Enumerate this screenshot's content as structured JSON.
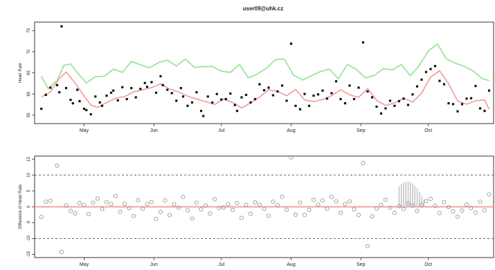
{
  "page": {
    "title": "user09@uhk.cz"
  },
  "chart_data": [
    {
      "type": "scatter",
      "title": "user09@uhk.cz",
      "xlabel": "",
      "ylabel": "Heart Rate",
      "xlim": [
        "2013-04-09",
        "2013-10-30"
      ],
      "ylim": [
        53,
        77
      ],
      "yticks": [
        55,
        60,
        65,
        70,
        75
      ],
      "month_ticks": [
        {
          "label": "May",
          "date": "2013-05-01"
        },
        {
          "label": "Jun",
          "date": "2013-06-01"
        },
        {
          "label": "Jul",
          "date": "2013-07-01"
        },
        {
          "label": "Aug",
          "date": "2013-08-01"
        },
        {
          "label": "Sep",
          "date": "2013-09-01"
        },
        {
          "label": "Oct",
          "date": "2013-10-01"
        }
      ],
      "colors": {
        "points": "#111111",
        "upper": "#9be59b",
        "smooth": "#f4a3a3"
      },
      "series": [
        {
          "kind": "points",
          "x": [
            "2013-04-12",
            "2013-04-14",
            "2013-04-16",
            "2013-04-19",
            "2013-04-20",
            "2013-04-21",
            "2013-04-23",
            "2013-04-25",
            "2013-04-26",
            "2013-04-28",
            "2013-04-29",
            "2013-05-01",
            "2013-05-02",
            "2013-05-04",
            "2013-05-06",
            "2013-05-08",
            "2013-05-09",
            "2013-05-11",
            "2013-05-13",
            "2013-05-14",
            "2013-05-16",
            "2013-05-18",
            "2013-05-20",
            "2013-05-22",
            "2013-05-24",
            "2013-05-26",
            "2013-05-28",
            "2013-05-29",
            "2013-05-31",
            "2013-06-02",
            "2013-06-04",
            "2013-06-05",
            "2013-06-07",
            "2013-06-09",
            "2013-06-11",
            "2013-06-13",
            "2013-06-14",
            "2013-06-16",
            "2013-06-18",
            "2013-06-20",
            "2013-06-22",
            "2013-06-23",
            "2013-06-25",
            "2013-06-27",
            "2013-06-29",
            "2013-07-01",
            "2013-07-03",
            "2013-07-05",
            "2013-07-07",
            "2013-07-08",
            "2013-07-10",
            "2013-07-12",
            "2013-07-14",
            "2013-07-16",
            "2013-07-18",
            "2013-07-20",
            "2013-07-22",
            "2013-07-24",
            "2013-07-26",
            "2013-07-28",
            "2013-07-30",
            "2013-08-01",
            "2013-08-03",
            "2013-08-05",
            "2013-08-07",
            "2013-08-09",
            "2013-08-11",
            "2013-08-13",
            "2013-08-15",
            "2013-08-17",
            "2013-08-19",
            "2013-08-21",
            "2013-08-23",
            "2013-08-25",
            "2013-08-27",
            "2013-08-29",
            "2013-08-31",
            "2013-09-02",
            "2013-09-04",
            "2013-09-06",
            "2013-09-08",
            "2013-09-10",
            "2013-09-12",
            "2013-09-14",
            "2013-09-16",
            "2013-09-18",
            "2013-09-20",
            "2013-09-22",
            "2013-09-24",
            "2013-09-26",
            "2013-09-28",
            "2013-09-30",
            "2013-10-02",
            "2013-10-04",
            "2013-10-06",
            "2013-10-08",
            "2013-10-10",
            "2013-10-12",
            "2013-10-14",
            "2013-10-16",
            "2013-10-18",
            "2013-10-20",
            "2013-10-22",
            "2013-10-24",
            "2013-10-26",
            "2013-10-28"
          ],
          "y": [
            56.5,
            59.8,
            61.5,
            62.1,
            60.4,
            76.0,
            61.4,
            58.6,
            57.8,
            61.0,
            58.3,
            56.5,
            56.2,
            55.2,
            59.4,
            58.0,
            57.2,
            59.6,
            60.3,
            60.8,
            58.5,
            61.6,
            58.8,
            61.4,
            59.2,
            61.2,
            62.6,
            61.7,
            62.8,
            60.3,
            64.2,
            62.1,
            61.0,
            60.2,
            58.4,
            61.4,
            59.4,
            57.2,
            58.0,
            60.4,
            56.0,
            54.8,
            59.4,
            58.0,
            60.0,
            58.7,
            58.8,
            60.1,
            57.4,
            56.0,
            59.2,
            59.8,
            58.0,
            58.8,
            62.3,
            60.9,
            61.5,
            59.7,
            60.6,
            62.0,
            58.4,
            71.9,
            57.2,
            56.4,
            60.0,
            57.2,
            59.6,
            59.9,
            60.8,
            58.9,
            60.2,
            63.0,
            58.8,
            57.8,
            62.0,
            58.8,
            61.5,
            72.2,
            60.6,
            59.2,
            57.0,
            55.4,
            56.6,
            58.4,
            57.2,
            58.3,
            58.9,
            57.4,
            59.9,
            61.8,
            63.4,
            65.2,
            65.9,
            66.6,
            63.1,
            62.3,
            57.8,
            57.6,
            55.9,
            57.6,
            58.9,
            59.0,
            61.9,
            56.6,
            56.0,
            60.8
          ]
        },
        {
          "kind": "smooth",
          "x": [
            "2013-04-12",
            "2013-04-16",
            "2013-04-20",
            "2013-04-23",
            "2013-04-27",
            "2013-05-01",
            "2013-05-04",
            "2013-05-07",
            "2013-05-11",
            "2013-05-15",
            "2013-05-19",
            "2013-05-23",
            "2013-05-27",
            "2013-05-31",
            "2013-06-04",
            "2013-06-08",
            "2013-06-12",
            "2013-06-16",
            "2013-06-20",
            "2013-06-24",
            "2013-06-28",
            "2013-07-02",
            "2013-07-06",
            "2013-07-10",
            "2013-07-14",
            "2013-07-18",
            "2013-07-22",
            "2013-07-26",
            "2013-07-30",
            "2013-08-03",
            "2013-08-07",
            "2013-08-11",
            "2013-08-15",
            "2013-08-19",
            "2013-08-23",
            "2013-08-27",
            "2013-08-31",
            "2013-09-04",
            "2013-09-08",
            "2013-09-12",
            "2013-09-16",
            "2013-09-20",
            "2013-09-24",
            "2013-09-28",
            "2013-10-02",
            "2013-10-06",
            "2013-10-10",
            "2013-10-14",
            "2013-10-18",
            "2013-10-22",
            "2013-10-26",
            "2013-10-28"
          ],
          "y": [
            59.3,
            60.5,
            63.7,
            65.2,
            62.6,
            59.5,
            57.4,
            56.8,
            58.0,
            59.0,
            59.4,
            60.5,
            61.0,
            61.5,
            62.4,
            61.2,
            60.5,
            59.5,
            58.8,
            58.2,
            57.5,
            58.8,
            58.0,
            56.7,
            57.9,
            59.3,
            61.0,
            60.6,
            59.6,
            61.1,
            58.6,
            58.2,
            58.7,
            59.6,
            61.0,
            59.8,
            59.2,
            61.3,
            58.5,
            57.3,
            57.9,
            59.0,
            58.1,
            60.2,
            64.0,
            65.5,
            62.4,
            58.3,
            57.6,
            58.4,
            58.6,
            56.4
          ]
        },
        {
          "kind": "upper",
          "x": [
            "2013-04-12",
            "2013-04-15",
            "2013-04-19",
            "2013-04-22",
            "2013-04-25",
            "2013-04-28",
            "2013-05-02",
            "2013-05-06",
            "2013-05-10",
            "2013-05-14",
            "2013-05-18",
            "2013-05-22",
            "2013-05-26",
            "2013-05-30",
            "2013-06-03",
            "2013-06-07",
            "2013-06-11",
            "2013-06-15",
            "2013-06-19",
            "2013-06-23",
            "2013-06-27",
            "2013-07-01",
            "2013-07-05",
            "2013-07-09",
            "2013-07-13",
            "2013-07-17",
            "2013-07-21",
            "2013-07-25",
            "2013-07-29",
            "2013-08-02",
            "2013-08-06",
            "2013-08-10",
            "2013-08-14",
            "2013-08-18",
            "2013-08-22",
            "2013-08-26",
            "2013-08-30",
            "2013-09-03",
            "2013-09-07",
            "2013-09-11",
            "2013-09-15",
            "2013-09-19",
            "2013-09-23",
            "2013-09-27",
            "2013-10-01",
            "2013-10-05",
            "2013-10-09",
            "2013-10-13",
            "2013-10-17",
            "2013-10-21",
            "2013-10-25",
            "2013-10-28"
          ],
          "y": [
            64.2,
            61.3,
            63.2,
            66.8,
            67.1,
            65.0,
            62.6,
            64.1,
            64.2,
            65.9,
            65.1,
            67.7,
            66.9,
            66.2,
            67.4,
            68.0,
            66.6,
            68.3,
            66.3,
            66.5,
            66.5,
            65.4,
            65.1,
            67.0,
            63.8,
            64.7,
            66.1,
            68.1,
            68.3,
            64.5,
            63.3,
            64.3,
            65.3,
            65.9,
            63.6,
            67.0,
            65.8,
            63.8,
            64.4,
            66.0,
            65.7,
            67.0,
            64.3,
            66.8,
            70.2,
            71.8,
            68.3,
            67.3,
            66.5,
            65.4,
            63.6,
            63.2
          ]
        }
      ]
    },
    {
      "type": "scatter",
      "title": "",
      "xlabel": "",
      "ylabel": "Difference of Heart Rate",
      "xlim": [
        "2013-04-09",
        "2013-10-30"
      ],
      "ylim": [
        -16,
        16
      ],
      "yticks": [
        -15,
        -10,
        -5,
        0,
        5,
        10,
        15
      ],
      "reference_lines": {
        "zero": 0,
        "dashed": [
          10,
          -10
        ]
      },
      "month_ticks": [
        {
          "label": "May",
          "date": "2013-05-01"
        },
        {
          "label": "Jun",
          "date": "2013-06-01"
        },
        {
          "label": "Jul",
          "date": "2013-07-01"
        },
        {
          "label": "Aug",
          "date": "2013-08-01"
        },
        {
          "label": "Sep",
          "date": "2013-09-01"
        },
        {
          "label": "Oct",
          "date": "2013-10-01"
        }
      ],
      "colors": {
        "points": "#9a9a9a",
        "zero": "#f4a3a3",
        "dashed": "#555555",
        "bars": "#bdbdbd"
      },
      "series": [
        {
          "kind": "points",
          "x": [
            "2013-04-12",
            "2013-04-14",
            "2013-04-16",
            "2013-04-19",
            "2013-04-21",
            "2013-04-23",
            "2013-04-25",
            "2013-04-27",
            "2013-04-29",
            "2013-05-01",
            "2013-05-03",
            "2013-05-05",
            "2013-05-07",
            "2013-05-09",
            "2013-05-11",
            "2013-05-13",
            "2013-05-15",
            "2013-05-17",
            "2013-05-19",
            "2013-05-21",
            "2013-05-23",
            "2013-05-25",
            "2013-05-27",
            "2013-05-29",
            "2013-05-31",
            "2013-06-02",
            "2013-06-04",
            "2013-06-06",
            "2013-06-08",
            "2013-06-10",
            "2013-06-12",
            "2013-06-14",
            "2013-06-16",
            "2013-06-18",
            "2013-06-20",
            "2013-06-22",
            "2013-06-24",
            "2013-06-26",
            "2013-06-28",
            "2013-06-30",
            "2013-07-02",
            "2013-07-04",
            "2013-07-06",
            "2013-07-08",
            "2013-07-10",
            "2013-07-12",
            "2013-07-14",
            "2013-07-16",
            "2013-07-18",
            "2013-07-20",
            "2013-07-22",
            "2013-07-24",
            "2013-07-26",
            "2013-07-28",
            "2013-07-30",
            "2013-08-01",
            "2013-08-03",
            "2013-08-05",
            "2013-08-07",
            "2013-08-09",
            "2013-08-11",
            "2013-08-13",
            "2013-08-15",
            "2013-08-17",
            "2013-08-19",
            "2013-08-21",
            "2013-08-23",
            "2013-08-25",
            "2013-08-27",
            "2013-08-29",
            "2013-08-31",
            "2013-09-02",
            "2013-09-04",
            "2013-09-06",
            "2013-09-08",
            "2013-09-10",
            "2013-09-12",
            "2013-09-14",
            "2013-09-16",
            "2013-09-18",
            "2013-09-20",
            "2013-09-22",
            "2013-09-24",
            "2013-09-26",
            "2013-09-28",
            "2013-09-30",
            "2013-10-02",
            "2013-10-04",
            "2013-10-06",
            "2013-10-08",
            "2013-10-10",
            "2013-10-12",
            "2013-10-14",
            "2013-10-16",
            "2013-10-18",
            "2013-10-20",
            "2013-10-22",
            "2013-10-24",
            "2013-10-26",
            "2013-10-28"
          ],
          "y": [
            -3.2,
            1.6,
            1.9,
            13.0,
            -14.2,
            0.4,
            -1.3,
            -2.1,
            1.2,
            0.6,
            -2.3,
            1.3,
            2.6,
            -0.7,
            1.5,
            0.9,
            3.4,
            -1.6,
            1.0,
            -0.4,
            -2.9,
            2.1,
            -0.6,
            0.9,
            1.5,
            -3.8,
            -1.6,
            2.0,
            -2.6,
            0.8,
            -0.3,
            3.1,
            -1.1,
            -3.7,
            1.3,
            -0.8,
            0.4,
            -2.1,
            2.4,
            -0.4,
            -0.2,
            0.8,
            -1.0,
            1.2,
            -3.5,
            0.6,
            -2.2,
            1.4,
            0.7,
            -0.6,
            -2.9,
            1.6,
            0.5,
            3.2,
            -0.9,
            15.6,
            -2.5,
            1.3,
            -2.6,
            -1.0,
            2.2,
            0.7,
            2.0,
            -0.6,
            3.1,
            1.7,
            -1.9,
            0.9,
            1.7,
            -0.8,
            -2.6,
            13.8,
            -12.4,
            -3.0,
            -0.5,
            0.6,
            2.2,
            -0.3,
            -1.9,
            0.2,
            -0.7,
            1.1,
            0.4,
            -1.3,
            0.6,
            1.8,
            2.5,
            0.3,
            -2.0,
            1.5,
            -0.1,
            -1.4,
            -3.1,
            -1.2,
            0.7,
            -0.4,
            -1.8,
            1.6,
            -1.1,
            3.9
          ]
        },
        {
          "kind": "bars",
          "x": [
            "2013-09-18",
            "2013-09-19",
            "2013-09-20",
            "2013-09-21",
            "2013-09-22",
            "2013-09-23",
            "2013-09-24",
            "2013-09-25",
            "2013-09-26",
            "2013-09-27",
            "2013-09-28",
            "2013-09-29"
          ],
          "y": [
            6.5,
            7.2,
            7.6,
            7.9,
            8.0,
            7.7,
            7.3,
            6.6,
            5.8,
            4.7,
            3.6,
            2.3
          ]
        }
      ]
    }
  ]
}
